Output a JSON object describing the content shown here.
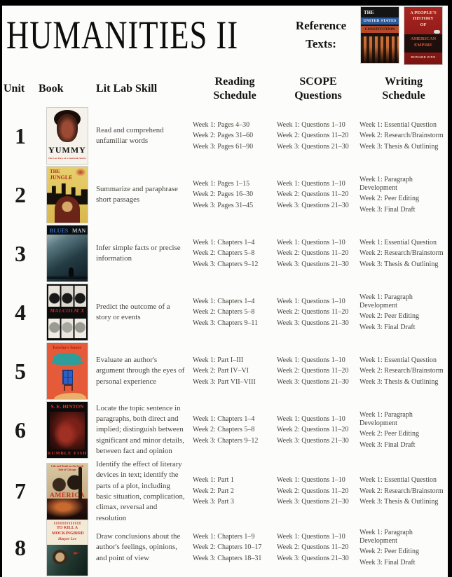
{
  "colors": {
    "page_background": "#fcfcfa",
    "body_text": "#45433d",
    "heading_text": "#141414",
    "accent_red": "#c0281e"
  },
  "header": {
    "title": "HUMANITIES II",
    "reference_label_line1": "Reference",
    "reference_label_line2": "Texts:",
    "reference_texts": [
      {
        "cover_lines": [
          "THE",
          "UNITED STATES",
          "CONSTITUTION"
        ]
      },
      {
        "cover_lines": [
          "A PEOPLE'S HISTORY OF",
          "AMERICAN EMPIRE",
          "HOWARD ZINN"
        ]
      }
    ]
  },
  "table": {
    "headers": [
      "Unit",
      "Book",
      "Lit Lab Skill",
      "Reading Schedule",
      "SCOPE Questions",
      "Writing Schedule"
    ],
    "rows": [
      {
        "unit": "1",
        "book": {
          "cover": "yummy",
          "cover_lines": [
            "YUMMY",
            "The Last Days of a Southside Shorty"
          ]
        },
        "skill": "Read and comprehend unfamiliar words",
        "reading": [
          "Week 1: Pages 4–30",
          "Week 2: Pages 31–60",
          "Week 3: Pages 61–90"
        ],
        "scope": [
          "Week 1: Questions 1–10",
          "Week 2: Questions 11–20",
          "Week 3: Questions 21–30"
        ],
        "writing": [
          "Week 1: Essential Question",
          "Week 2: Research/Brainstorm",
          "Week 3: Thesis & Outlining"
        ]
      },
      {
        "unit": "2",
        "book": {
          "cover": "jungle",
          "cover_lines": [
            "THE",
            "JUNGLE"
          ]
        },
        "skill": "Summarize and paraphrase short passages",
        "reading": [
          "Week 1: Pages 1–15",
          "Week 2: Pages 16–30",
          "Week 3: Pages 31–45"
        ],
        "scope": [
          "Week 1: Questions 1–10",
          "Week 2: Questions 11–20",
          "Week 3: Questions 21–30"
        ],
        "writing": [
          "Week 1: Paragraph Development",
          "Week 2: Peer Editing",
          "Week 3: Final Draft"
        ]
      },
      {
        "unit": "3",
        "book": {
          "cover": "blues",
          "cover_lines": [
            "BLUES",
            "MAN"
          ]
        },
        "skill": "Infer simple facts or precise information",
        "reading": [
          "Week 1: Chapters 1–4",
          "Week 2: Chapters 5–8",
          "Week 3: Chapters 9–12"
        ],
        "scope": [
          "Week 1: Questions 1–10",
          "Week 2: Questions 11–20",
          "Week 3: Questions 21–30"
        ],
        "writing": [
          "Week 1: Essential Question",
          "Week 2: Research/Brainstorm",
          "Week 3: Thesis & Outlining"
        ]
      },
      {
        "unit": "4",
        "book": {
          "cover": "malc",
          "cover_lines": [
            "MALCOLM X"
          ]
        },
        "skill": "Predict the outcome of a story or events",
        "reading": [
          "Week 1: Chapters 1–4",
          "Week 2: Chapters 5–8",
          "Week 3: Chapters 9–11"
        ],
        "scope": [
          "Week 1: Questions 1–10",
          "Week 2: Questions 11–20",
          "Week 3: Questions 21–30"
        ],
        "writing": [
          "Week 1: Paragraph Development",
          "Week 2: Peer Editing",
          "Week 3: Final Draft"
        ]
      },
      {
        "unit": "5",
        "book": {
          "cover": "keesha",
          "cover_lines": [
            "keesha's house"
          ]
        },
        "skill": "Evaluate an author's argument through the eyes of personal experience",
        "reading": [
          "Week 1: Part I–III",
          "Week 2: Part IV–VI",
          "Week 3: Part VII–VIII"
        ],
        "scope": [
          "Week 1: Questions 1–10",
          "Week 2: Questions 11–20",
          "Week 3: Questions 21–30"
        ],
        "writing": [
          "Week 1: Essential Question",
          "Week 2: Research/Brainstorm",
          "Week 3: Thesis & Outlining"
        ]
      },
      {
        "unit": "6",
        "book": {
          "cover": "rumble",
          "cover_lines": [
            "S. E. HINTON",
            "RUMBLE FISH"
          ]
        },
        "skill": "Locate the topic sentence in paragraphs, both direct and implied; distinguish between significant and minor details, between fact and opinion",
        "reading": [
          "Week 1: Chapters 1–4",
          "Week 2: Chapters 5–8",
          "Week 3: Chapters 9–12"
        ],
        "scope": [
          "Week 1: Questions 1–10",
          "Week 2: Questions 11–20",
          "Week 3: Questions 21–30"
        ],
        "writing": [
          "Week 1: Paragraph Development",
          "Week 2: Peer Editing",
          "Week 3: Final Draft"
        ]
      },
      {
        "unit": "7",
        "book": {
          "cover": "amer",
          "cover_lines": [
            "Life and Death on the South Side of Chicago",
            "AMERICA"
          ]
        },
        "skill": "Identify the effect of literary devices in text; identify the parts of a plot, including basic situation, complication, climax, reversal and resolution",
        "reading": [
          "Week 1: Part 1",
          "Week 2: Part 2",
          "Week 3: Part 3"
        ],
        "scope": [
          "Week 1: Questions 1–10",
          "Week 2: Questions 11–20",
          "Week 3: Questions 21–30"
        ],
        "writing": [
          "Week 1: Essential Question",
          "Week 2: Research/Brainstorm",
          "Week 3: Thesis & Outlining"
        ]
      },
      {
        "unit": "8",
        "book": {
          "cover": "mock",
          "cover_lines": [
            "TO KILL A MOCKINGBIRD",
            "Harper Lee"
          ]
        },
        "skill": "Draw conclusions about the author's feelings, opinions, and point of view",
        "reading": [
          "Week 1: Chapters 1–9",
          "Week 2: Chapters 10–17",
          "Week 3: Chapters 18–31"
        ],
        "scope": [
          "Week 1: Questions 1–10",
          "Week 2: Questions 11–20",
          "Week 3: Questions 21–30"
        ],
        "writing": [
          "Week 1: Paragraph Development",
          "Week 2: Peer Editing",
          "Week 3: Final Draft"
        ]
      }
    ]
  }
}
